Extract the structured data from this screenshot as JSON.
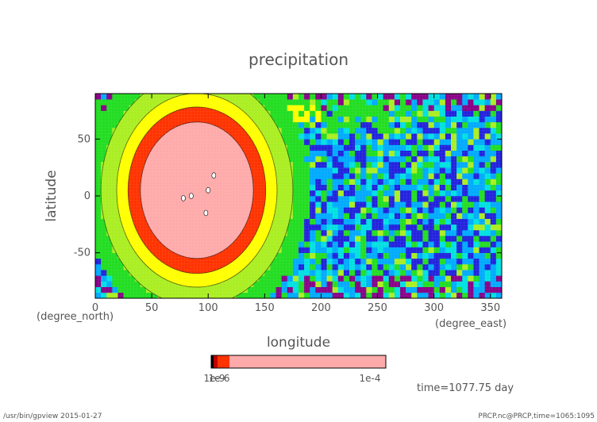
{
  "title": "precipitation",
  "footer_left": "/usr/bin/gpview   2015-01-27",
  "footer_right": "PRCP.nc@PRCP,time=1065:1095",
  "time_label": "time=1077.75 day",
  "chart_data": {
    "type": "heatmap",
    "xlabel": "longitude",
    "ylabel": "latitude",
    "x_unit": "(degree_east)",
    "y_unit": "(degree_north)",
    "xlim": [
      0,
      360
    ],
    "ylim": [
      -90,
      90
    ],
    "x_ticks": [
      "0",
      "50",
      "100",
      "150",
      "200",
      "250",
      "300",
      "350"
    ],
    "y_ticks": [
      "50",
      "0",
      "-50"
    ],
    "colorbar": {
      "left_label": "1e-9 ... 1e-6",
      "right_label": "1e-4",
      "colors": [
        "#000000",
        "#c00000",
        "#ff3300",
        "#ffaaaa"
      ]
    },
    "palette": [
      "#880088",
      "#2222dd",
      "#00aaff",
      "#00e0e0",
      "#22dd22",
      "#aaee22",
      "#ffff00",
      "#ff8800",
      "#ff3300",
      "#ffaaaa"
    ],
    "features": {
      "blob_center": [
        90,
        5
      ],
      "blob_radius_lon": 50,
      "blob_radius_lat": 60
    }
  }
}
